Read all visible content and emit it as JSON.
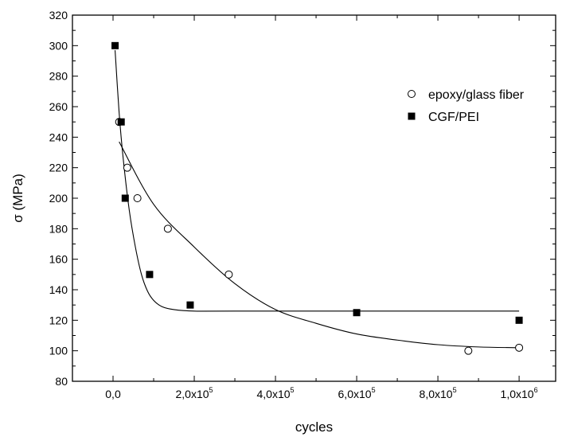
{
  "chart_data": {
    "type": "scatter",
    "title": "",
    "xlabel": "cycles",
    "ylabel": "σ (MPa)",
    "xlim": [
      -100000,
      1090000
    ],
    "ylim": [
      80,
      320
    ],
    "grid": false,
    "legend_position": "top-right",
    "x_ticks": [
      {
        "value": 0,
        "label": "0,0",
        "base": "",
        "exp": ""
      },
      {
        "value": 200000,
        "label": "2,0x10^5",
        "base": "2,0x10",
        "exp": "5"
      },
      {
        "value": 400000,
        "label": "4,0x10^5",
        "base": "4,0x10",
        "exp": "5"
      },
      {
        "value": 600000,
        "label": "6,0x10^5",
        "base": "6,0x10",
        "exp": "5"
      },
      {
        "value": 800000,
        "label": "8,0x10^5",
        "base": "8,0x10",
        "exp": "5"
      },
      {
        "value": 1000000,
        "label": "1,0x10^6",
        "base": "1,0x10",
        "exp": "6"
      }
    ],
    "y_ticks": [
      80,
      100,
      120,
      140,
      160,
      180,
      200,
      220,
      240,
      260,
      280,
      300,
      320
    ],
    "series": [
      {
        "name": "epoxy/glass fiber",
        "marker": "open-circle",
        "color": "#000000",
        "points": [
          {
            "x": 15000,
            "y": 250
          },
          {
            "x": 35000,
            "y": 220
          },
          {
            "x": 60000,
            "y": 200
          },
          {
            "x": 135000,
            "y": 180
          },
          {
            "x": 285000,
            "y": 150
          },
          {
            "x": 875000,
            "y": 100
          },
          {
            "x": 1000000,
            "y": 102
          }
        ],
        "fit": [
          {
            "x": 15000,
            "y": 237
          },
          {
            "x": 100000,
            "y": 196
          },
          {
            "x": 200000,
            "y": 168
          },
          {
            "x": 300000,
            "y": 144
          },
          {
            "x": 400000,
            "y": 127
          },
          {
            "x": 500000,
            "y": 118
          },
          {
            "x": 600000,
            "y": 111
          },
          {
            "x": 700000,
            "y": 107
          },
          {
            "x": 800000,
            "y": 104
          },
          {
            "x": 900000,
            "y": 102.5
          },
          {
            "x": 1000000,
            "y": 102
          }
        ]
      },
      {
        "name": "CGF/PEI",
        "marker": "filled-square",
        "color": "#000000",
        "points": [
          {
            "x": 5000,
            "y": 300
          },
          {
            "x": 20000,
            "y": 250
          },
          {
            "x": 30000,
            "y": 200
          },
          {
            "x": 90000,
            "y": 150
          },
          {
            "x": 190000,
            "y": 130
          },
          {
            "x": 600000,
            "y": 125
          },
          {
            "x": 1000000,
            "y": 120
          }
        ],
        "fit": [
          {
            "x": 5000,
            "y": 297
          },
          {
            "x": 15000,
            "y": 256
          },
          {
            "x": 25000,
            "y": 226
          },
          {
            "x": 40000,
            "y": 192
          },
          {
            "x": 55000,
            "y": 168
          },
          {
            "x": 70000,
            "y": 150
          },
          {
            "x": 85000,
            "y": 139
          },
          {
            "x": 100000,
            "y": 133
          },
          {
            "x": 120000,
            "y": 129
          },
          {
            "x": 150000,
            "y": 127
          },
          {
            "x": 200000,
            "y": 126
          },
          {
            "x": 300000,
            "y": 126
          },
          {
            "x": 1000000,
            "y": 126
          }
        ]
      }
    ]
  }
}
